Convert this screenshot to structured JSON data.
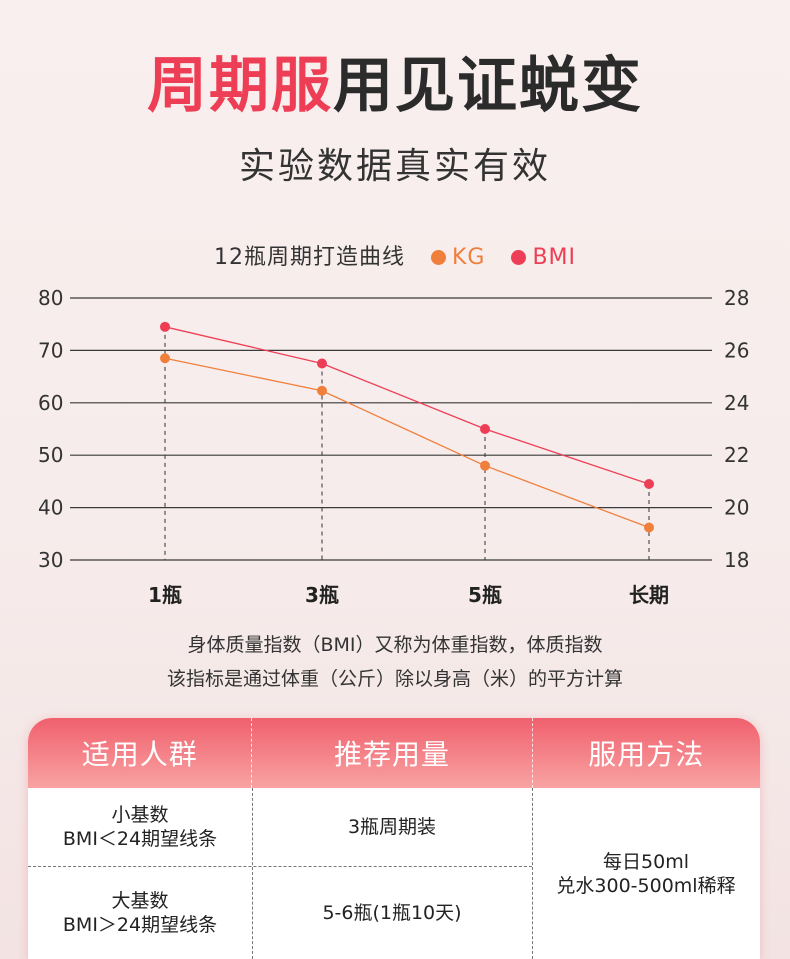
{
  "header": {
    "title_highlight": "周期服",
    "title_rest": "用见证蜕变",
    "subtitle": "实验数据真实有效"
  },
  "colors": {
    "kg": "#f07f3c",
    "bmi": "#ee3e55",
    "accent": "#ee3e55"
  },
  "chart_data": {
    "type": "line",
    "title": "12瓶周期打造曲线",
    "categories": [
      "1瓶",
      "3瓶",
      "5瓶",
      "长期"
    ],
    "left_axis": {
      "min": 30,
      "max": 80,
      "ticks": [
        80,
        70,
        60,
        50,
        40,
        30
      ]
    },
    "right_axis": {
      "min": 18,
      "max": 28,
      "ticks": [
        28,
        26,
        24,
        22,
        20,
        18
      ]
    },
    "series": [
      {
        "name": "KG",
        "axis": "left",
        "values": [
          68.5,
          62.3,
          48,
          36.2
        ]
      },
      {
        "name": "BMI",
        "axis": "right",
        "values": [
          26.9,
          25.5,
          23.0,
          20.9
        ]
      }
    ],
    "grid": true,
    "legend": "top-center"
  },
  "note": {
    "line1": "身体质量指数（BMI）又称为体重指数，体质指数",
    "line2": "该指标是通过体重（公斤）除以身高（米）的平方计算"
  },
  "table": {
    "headers": [
      "适用人群",
      "推荐用量",
      "服用方法"
    ],
    "rows": [
      {
        "group_l1": "小基数",
        "group_l2": "BMI＜24期望线条",
        "dose": "3瓶周期装"
      },
      {
        "group_l1": "大基数",
        "group_l2": "BMI＞24期望线条",
        "dose": "5-6瓶(1瓶10天)"
      }
    ],
    "method_l1": "每日50ml",
    "method_l2": "兑水300-500ml稀释"
  }
}
